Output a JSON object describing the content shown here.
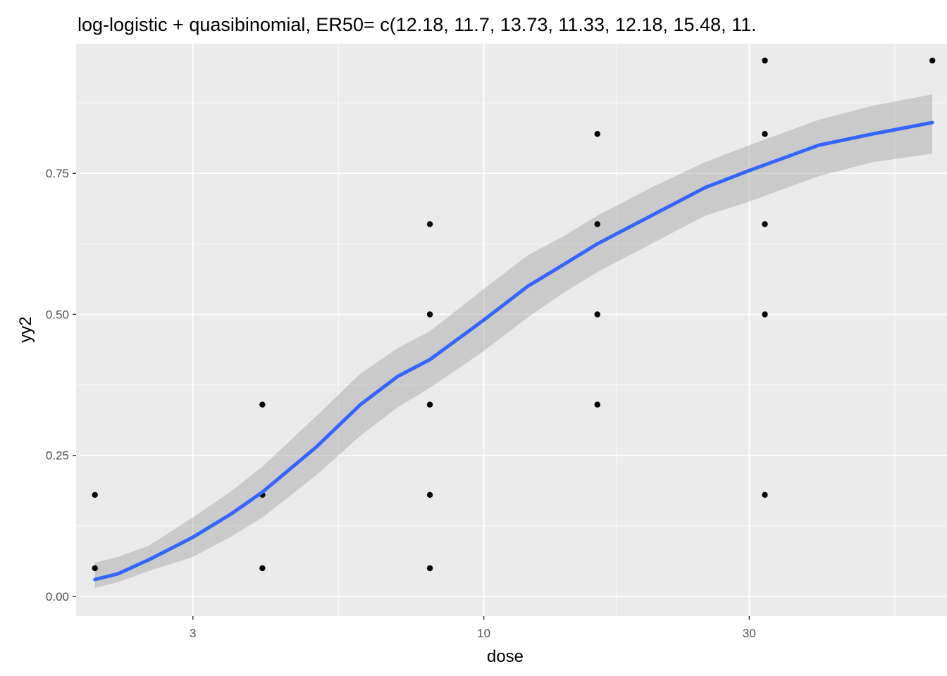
{
  "chart_data": {
    "type": "scatter",
    "title": "log-logistic + quasibinomial, ER50= c(12.18, 11.7, 13.73, 11.33, 12.18, 15.48, 11.",
    "xlabel": "dose",
    "ylabel": "yy2",
    "x_scale": "log",
    "xlim": [
      1.85,
      68
    ],
    "ylim": [
      -0.035,
      0.98
    ],
    "x_ticks": [
      3,
      10,
      30
    ],
    "x_tick_labels": [
      "3",
      "10",
      "30"
    ],
    "x_minor": [
      1.732,
      5.477,
      17.32,
      54.77
    ],
    "y_ticks": [
      0,
      0.25,
      0.5,
      0.75
    ],
    "y_tick_labels": [
      "0.00",
      "0.25",
      "0.50",
      "0.75"
    ],
    "y_minor": [
      0.125,
      0.375,
      0.625,
      0.875
    ],
    "grid": true,
    "background": "#ebebeb",
    "colors": {
      "points": "#000000",
      "fit_line": "#3366ff",
      "band": "#999999"
    },
    "points": [
      {
        "x": 2,
        "y": 0.18
      },
      {
        "x": 2,
        "y": 0.05
      },
      {
        "x": 4,
        "y": 0.34
      },
      {
        "x": 4,
        "y": 0.18
      },
      {
        "x": 4,
        "y": 0.05
      },
      {
        "x": 8,
        "y": 0.66
      },
      {
        "x": 8,
        "y": 0.5
      },
      {
        "x": 8,
        "y": 0.34
      },
      {
        "x": 8,
        "y": 0.18
      },
      {
        "x": 8,
        "y": 0.05
      },
      {
        "x": 16,
        "y": 0.82
      },
      {
        "x": 16,
        "y": 0.66
      },
      {
        "x": 16,
        "y": 0.5
      },
      {
        "x": 16,
        "y": 0.34
      },
      {
        "x": 32,
        "y": 0.95
      },
      {
        "x": 32,
        "y": 0.82
      },
      {
        "x": 32,
        "y": 0.66
      },
      {
        "x": 32,
        "y": 0.5
      },
      {
        "x": 32,
        "y": 0.18
      },
      {
        "x": 64,
        "y": 0.95
      }
    ],
    "fit": {
      "x": [
        2,
        2.2,
        2.5,
        3,
        3.5,
        4,
        5,
        6,
        7,
        8,
        10,
        12,
        14,
        16,
        20,
        25,
        30,
        40,
        50,
        64
      ],
      "y": [
        0.03,
        0.04,
        0.065,
        0.105,
        0.145,
        0.185,
        0.265,
        0.34,
        0.39,
        0.42,
        0.49,
        0.55,
        0.59,
        0.625,
        0.675,
        0.725,
        0.755,
        0.8,
        0.82,
        0.84
      ],
      "lower": [
        0.015,
        0.025,
        0.045,
        0.07,
        0.105,
        0.14,
        0.215,
        0.285,
        0.335,
        0.37,
        0.435,
        0.495,
        0.54,
        0.575,
        0.625,
        0.675,
        0.7,
        0.745,
        0.77,
        0.785
      ],
      "upper": [
        0.06,
        0.07,
        0.09,
        0.14,
        0.185,
        0.23,
        0.32,
        0.395,
        0.44,
        0.47,
        0.545,
        0.605,
        0.64,
        0.675,
        0.725,
        0.77,
        0.8,
        0.845,
        0.87,
        0.89
      ]
    }
  }
}
